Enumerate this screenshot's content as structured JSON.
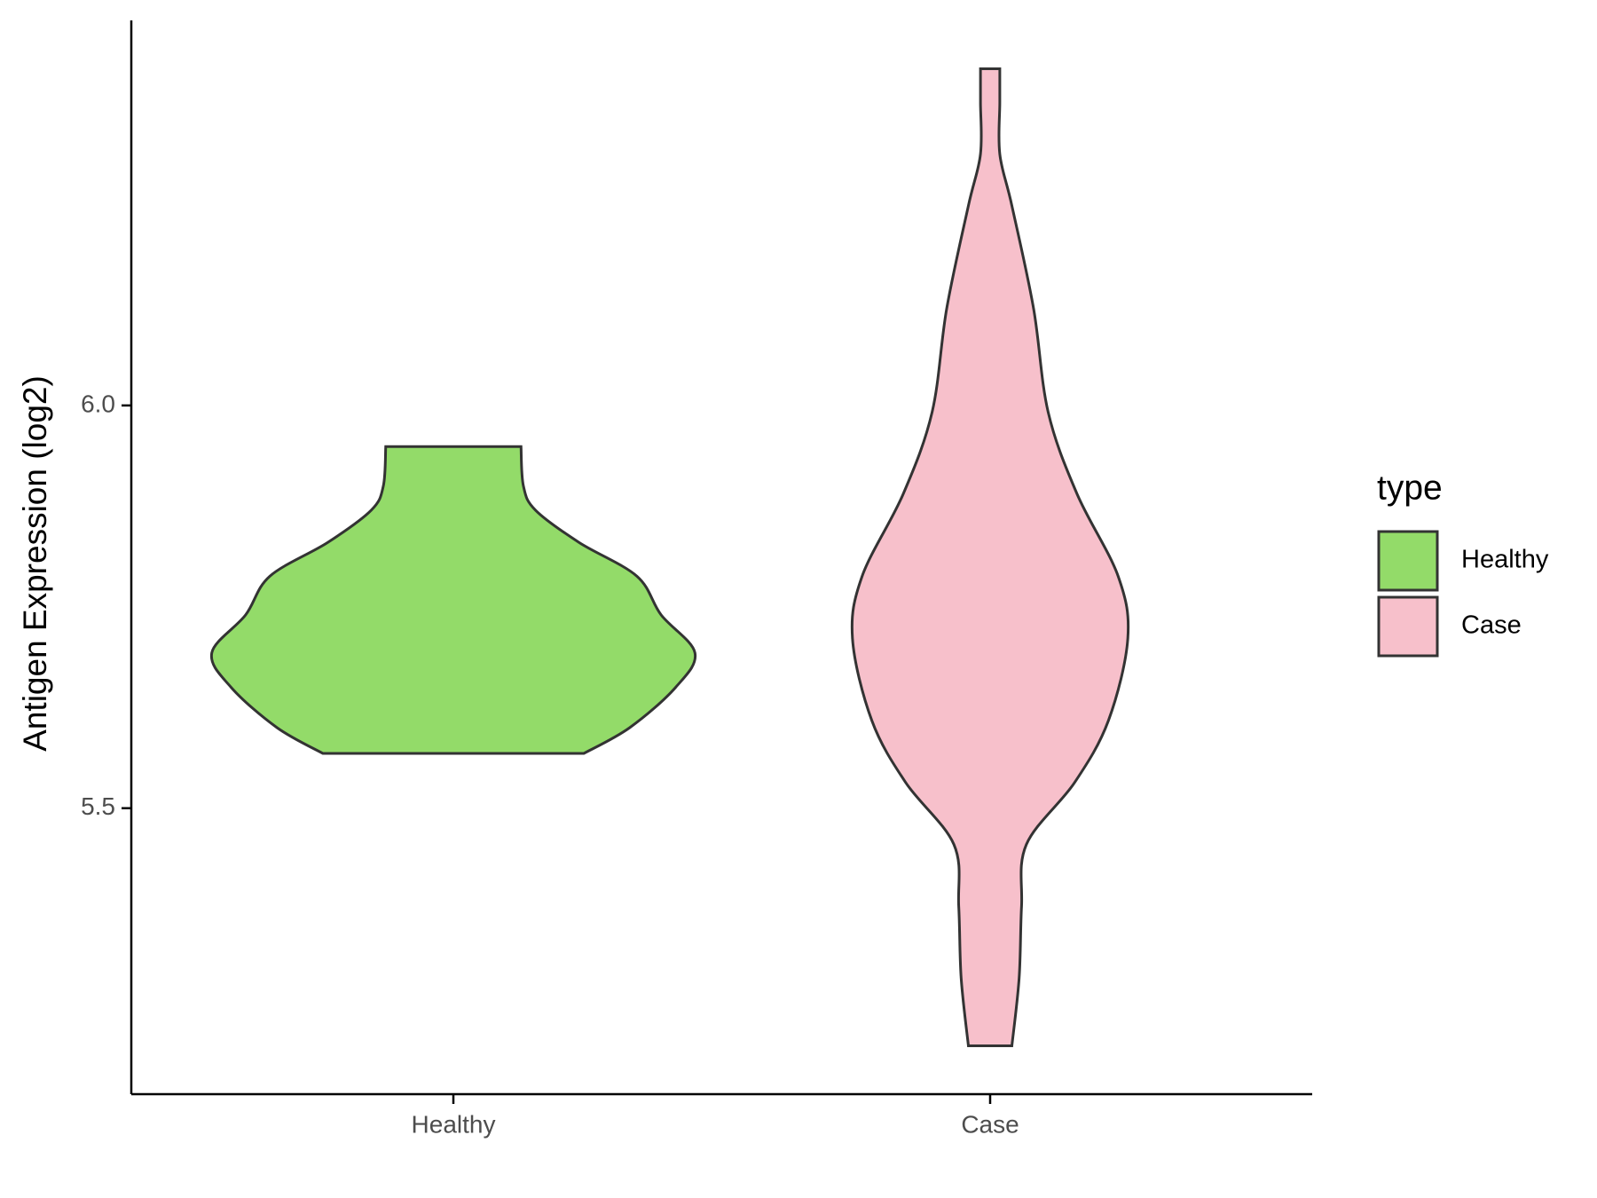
{
  "chart_data": {
    "type": "violin",
    "y_label": "Antigen Expression (log2)",
    "categories": [
      "Healthy",
      "Case"
    ],
    "legend_title": "type",
    "series": [
      {
        "name": "Healthy",
        "color": "#93db69",
        "y": [
          5.568,
          5.6,
          5.65,
          5.693,
          5.74,
          5.788,
          5.83,
          5.87,
          5.9,
          5.949
        ],
        "density": [
          0.54,
          0.73,
          0.92,
          1.0,
          0.86,
          0.76,
          0.52,
          0.34,
          0.29,
          0.28
        ]
      },
      {
        "name": "Case",
        "color": "#f7c0cb",
        "y": [
          5.205,
          5.289,
          5.378,
          5.455,
          5.532,
          5.609,
          5.711,
          5.788,
          5.89,
          5.992,
          6.12,
          6.248,
          6.312,
          6.376,
          6.418
        ],
        "density": [
          0.09,
          0.12,
          0.13,
          0.15,
          0.35,
          0.49,
          0.57,
          0.53,
          0.36,
          0.24,
          0.18,
          0.09,
          0.04,
          0.04,
          0.04
        ]
      }
    ],
    "ylim": [
      5.145,
      6.478
    ],
    "yticks": [
      {
        "value": 5.5,
        "label": "5.5"
      },
      {
        "value": 6.0,
        "label": "6.0"
      }
    ]
  }
}
